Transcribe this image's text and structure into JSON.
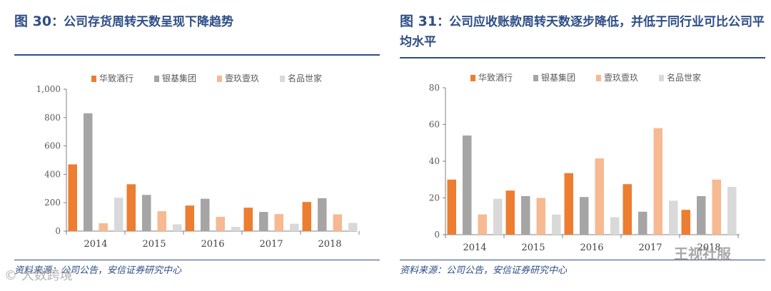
{
  "figures": [
    {
      "fig_label": "图 30",
      "fig_sep": "：",
      "fig_text": "公司存货周转天数呈现下降趋势",
      "source": "资料来源：公司公告，安信证券研究中心"
    },
    {
      "fig_label": "图 31",
      "fig_sep": "：",
      "fig_text": "公司应收账款周转天数逐步降低，并低于同行业可比公司平均水平",
      "source": "资料来源：公司公告，安信证券研究中心"
    }
  ],
  "chart_data": [
    {
      "type": "bar",
      "title": "",
      "xlabel": "",
      "ylabel": "",
      "categories": [
        "2014",
        "2015",
        "2016",
        "2017",
        "2018"
      ],
      "ylim": [
        0,
        1000
      ],
      "yticks": [
        0,
        200,
        400,
        600,
        800,
        1000
      ],
      "ytick_labels": [
        "0",
        "200",
        "400",
        "600",
        "800",
        "1,000"
      ],
      "grid": false,
      "legend_position": "top",
      "series": [
        {
          "name": "华致酒行",
          "color": "#ed7d31",
          "values": [
            470,
            330,
            180,
            165,
            205
          ]
        },
        {
          "name": "银基集团",
          "color": "#a5a5a5",
          "values": [
            830,
            255,
            228,
            135,
            232
          ]
        },
        {
          "name": "壹玖壹玖",
          "color": "#f6b992",
          "values": [
            55,
            140,
            100,
            120,
            118
          ]
        },
        {
          "name": "名品世家",
          "color": "#d9d9d9",
          "values": [
            235,
            48,
            30,
            52,
            58
          ]
        }
      ]
    },
    {
      "type": "bar",
      "title": "",
      "xlabel": "",
      "ylabel": "",
      "categories": [
        "2014",
        "2015",
        "2016",
        "2017",
        "2018"
      ],
      "ylim": [
        0,
        80
      ],
      "yticks": [
        0,
        20,
        40,
        60,
        80
      ],
      "ytick_labels": [
        "0",
        "20",
        "40",
        "60",
        "80"
      ],
      "grid": false,
      "legend_position": "top",
      "series": [
        {
          "name": "华致酒行",
          "color": "#ed7d31",
          "values": [
            30,
            24,
            33.5,
            27.5,
            13.5
          ]
        },
        {
          "name": "银基集团",
          "color": "#a5a5a5",
          "values": [
            54,
            21,
            20.5,
            12.5,
            21
          ]
        },
        {
          "name": "壹玖壹玖",
          "color": "#f6b992",
          "values": [
            11,
            20,
            41.5,
            58,
            30
          ]
        },
        {
          "name": "名品世家",
          "color": "#d9d9d9",
          "values": [
            19.5,
            11,
            9.5,
            18.5,
            26
          ]
        }
      ]
    }
  ],
  "watermarks": {
    "left": "© 大数跨境",
    "right": "王视社服"
  }
}
